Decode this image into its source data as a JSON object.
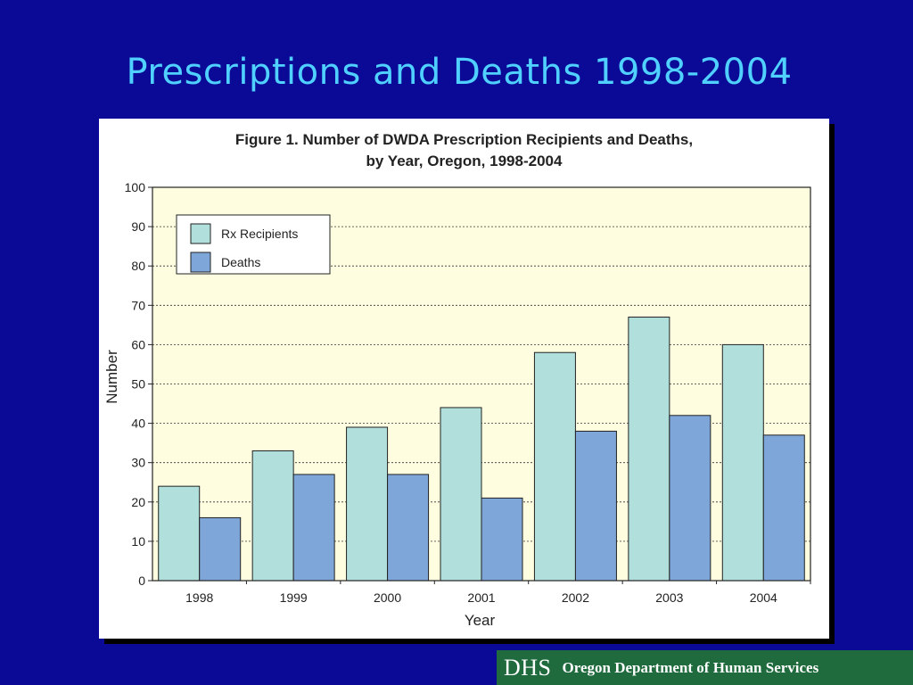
{
  "slide": {
    "title": "Prescriptions and Deaths 1998-2004"
  },
  "figure": {
    "title_line1": "Figure 1.  Number of DWDA Prescription Recipients and Deaths,",
    "title_line2": "by Year, Oregon, 1998-2004"
  },
  "chart_data": {
    "type": "bar",
    "categories": [
      "1998",
      "1999",
      "2000",
      "2001",
      "2002",
      "2003",
      "2004"
    ],
    "series": [
      {
        "name": "Rx Recipients",
        "values": [
          24,
          33,
          39,
          44,
          58,
          67,
          60
        ],
        "color": "#b0dfdc"
      },
      {
        "name": "Deaths",
        "values": [
          16,
          27,
          27,
          21,
          38,
          42,
          37
        ],
        "color": "#7ea6d8"
      }
    ],
    "xlabel": "Year",
    "ylabel": "Number",
    "ylim": [
      0,
      100
    ],
    "yticks": [
      0,
      10,
      20,
      30,
      40,
      50,
      60,
      70,
      80,
      90,
      100
    ],
    "grid": true,
    "legend_position": "top-left",
    "plot_background": "#fffde0"
  },
  "footer": {
    "logo_mark": "DHS",
    "organization": "Oregon Department of Human Services",
    "background": "#1f6b3d"
  }
}
